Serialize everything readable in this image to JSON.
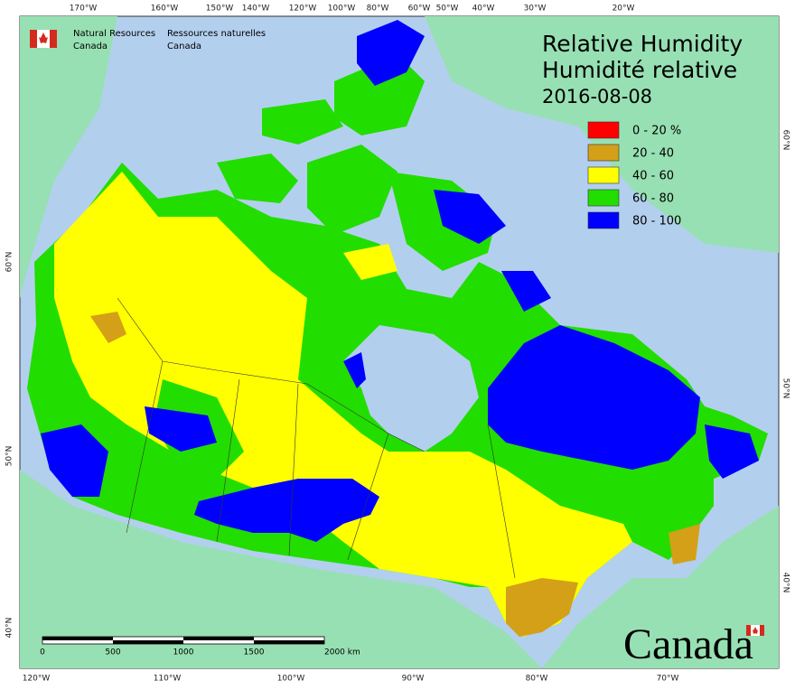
{
  "header": {
    "org_en": [
      "Natural Resources",
      "Canada"
    ],
    "org_fr": [
      "Ressources naturelles",
      "Canada"
    ]
  },
  "title": {
    "line1": "Relative Humidity",
    "line2": "Humidité relative",
    "date": "2016-08-08"
  },
  "legend": [
    {
      "label": "0 - 20 %",
      "color": "#ff0000"
    },
    {
      "label": "20 - 40",
      "color": "#d4a017"
    },
    {
      "label": "40 - 60",
      "color": "#ffff00"
    },
    {
      "label": "60 - 80",
      "color": "#22dd00"
    },
    {
      "label": "80 - 100",
      "color": "#0000ff"
    }
  ],
  "graticule": {
    "top": [
      "170°W",
      "160°W",
      "150°W",
      "140°W",
      "120°W",
      "100°W",
      "80°W",
      "60°W",
      "50°W",
      "40°W",
      "30°W",
      "20°W"
    ],
    "bottom": [
      "120°W",
      "110°W",
      "100°W",
      "90°W",
      "80°W",
      "70°W"
    ],
    "left": [
      "60°N",
      "50°N",
      "40°N"
    ],
    "right": [
      "60°N",
      "50°N",
      "40°N"
    ]
  },
  "scale_bar": {
    "labels": [
      "0",
      "500",
      "1000",
      "1500",
      "2000 km"
    ]
  },
  "wordmark": "Canada"
}
